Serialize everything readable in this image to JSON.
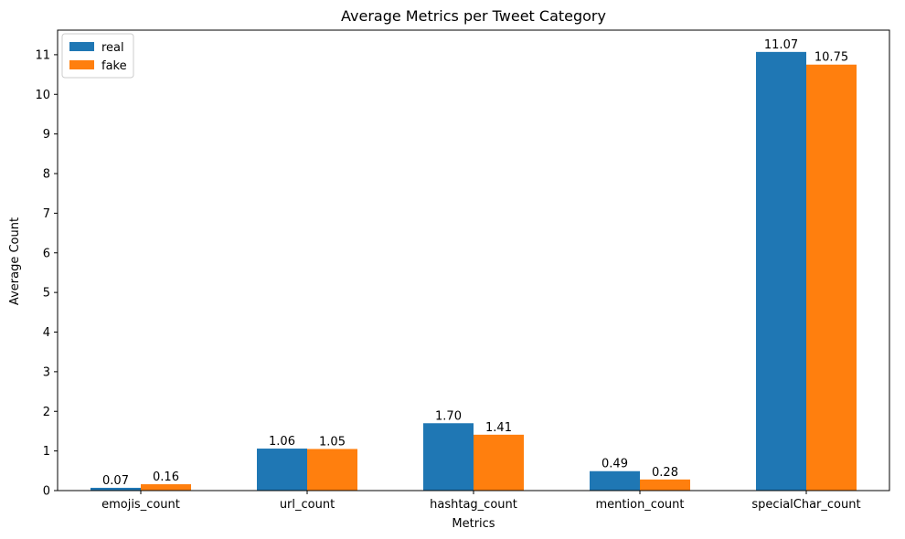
{
  "chart_data": {
    "type": "bar",
    "title": "Average Metrics per Tweet Category",
    "xlabel": "Metrics",
    "ylabel": "Average Count",
    "categories": [
      "emojis_count",
      "url_count",
      "hashtag_count",
      "mention_count",
      "specialChar_count"
    ],
    "series": [
      {
        "name": "real",
        "color": "#1f77b4",
        "values": [
          0.07,
          1.06,
          1.7,
          0.49,
          11.07
        ],
        "labels": [
          "0.07",
          "1.06",
          "1.70",
          "0.49",
          "11.07"
        ]
      },
      {
        "name": "fake",
        "color": "#ff7f0e",
        "values": [
          0.16,
          1.05,
          1.41,
          0.28,
          10.75
        ],
        "labels": [
          "0.16",
          "1.05",
          "1.41",
          "0.28",
          "10.75"
        ]
      }
    ],
    "yticks": [
      0,
      1,
      2,
      3,
      4,
      5,
      6,
      7,
      8,
      9,
      10,
      11
    ],
    "ylim": [
      0,
      11.62
    ],
    "grid": false,
    "legend_position": "top-left"
  }
}
